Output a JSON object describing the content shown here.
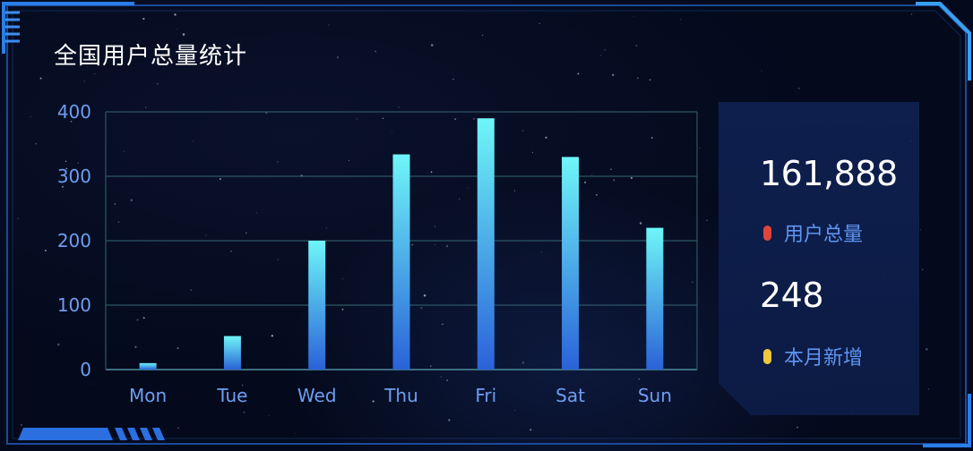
{
  "panel": {
    "title": "全国用户总量统计"
  },
  "chart_data": {
    "type": "bar",
    "title": "全国用户总量统计",
    "categories": [
      "Mon",
      "Tue",
      "Wed",
      "Thu",
      "Fri",
      "Sat",
      "Sun"
    ],
    "values": [
      10,
      52,
      200,
      334,
      390,
      330,
      220
    ],
    "yticks": [
      0,
      100,
      200,
      300,
      400
    ],
    "ylim": [
      0,
      400
    ],
    "xlabel": "",
    "ylabel": "",
    "grid": true,
    "colors": {
      "bar_top": "#6ff6f8",
      "bar_bottom": "#2a62d8",
      "grid": "#2f5566",
      "tick_text": "#6f9df0"
    }
  },
  "stats": {
    "total_users": {
      "value": "161,888",
      "label": "用户总量",
      "dot_color": "#e0453b"
    },
    "monthly_new": {
      "value": "248",
      "label": "本月新增",
      "dot_color": "#f0c63c"
    }
  }
}
